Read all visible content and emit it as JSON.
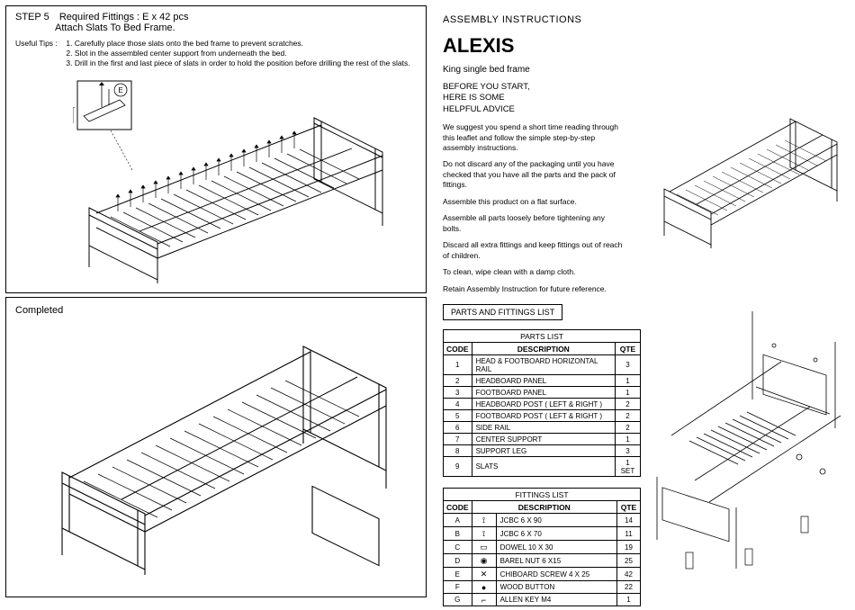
{
  "colors": {
    "line": "#000000",
    "bg": "#ffffff"
  },
  "left": {
    "step5": {
      "title": "STEP 5",
      "fittings": "Required Fittings  :  E x 42 pcs",
      "subtitle": "Attach Slats To Bed Frame.",
      "tips_label": "Useful Tips :",
      "tips": [
        "1.  Carefully place those slats onto the bed frame to prevent scratches.",
        "2.  Slot in the assembled center support from underneath the bed.",
        "3.  Drill in the first and last piece of slats in order to hold the position before drilling the rest of the slats."
      ],
      "callout_letter": "E"
    },
    "completed": {
      "label": "Completed"
    }
  },
  "right": {
    "assembly_title": "ASSEMBLY INSTRUCTIONS",
    "product": "ALEXIS",
    "subtitle": "King single bed frame",
    "advice_head_l1": "BEFORE YOU START,",
    "advice_head_l2": "HERE IS SOME",
    "advice_head_l3": "HELPFUL ADVICE",
    "advice": [
      "We suggest you spend a short time reading through this leaflet and follow the simple step-by-step assembly instructions.",
      "Do not discard any of the packaging until you have checked that you have all the parts and the pack of fittings.",
      "Assemble this product on a flat surface.",
      "Assemble all parts loosely before tightening any bolts.",
      "Discard all extra fittings and keep fittings out of reach of children.",
      "To clean, wipe clean with a damp cloth.",
      "Retain Assembly Instruction for future reference."
    ],
    "pf_title": "PARTS AND FITTINGS LIST",
    "parts_table": {
      "name": "PARTS LIST",
      "headers": [
        "CODE",
        "DESCRIPTION",
        "QTE"
      ],
      "rows": [
        [
          "1",
          "HEAD & FOOTBOARD HORIZONTAL RAIL",
          "3"
        ],
        [
          "2",
          "HEADBOARD PANEL",
          "1"
        ],
        [
          "3",
          "FOOTBOARD PANEL",
          "1"
        ],
        [
          "4",
          "HEADBOARD POST ( LEFT & RIGHT )",
          "2"
        ],
        [
          "5",
          "FOOTBOARD POST ( LEFT & RIGHT )",
          "2"
        ],
        [
          "6",
          "SIDE RAIL",
          "2"
        ],
        [
          "7",
          "CENTER SUPPORT",
          "1"
        ],
        [
          "8",
          "SUPPORT LEG",
          "3"
        ],
        [
          "9",
          "SLATS",
          "1 SET"
        ]
      ]
    },
    "fittings_table": {
      "name": "FITTINGS LIST",
      "headers": [
        "CODE",
        "",
        "DESCRIPTION",
        "QTE"
      ],
      "rows": [
        [
          "A",
          "⟟",
          "JCBC 6 X 90",
          "14"
        ],
        [
          "B",
          "⟟",
          "JCBC 6 X 70",
          "11"
        ],
        [
          "C",
          "▭",
          "DOWEL 10 X 30",
          "19"
        ],
        [
          "D",
          "◉",
          "BAREL NUT 6 X15",
          "25"
        ],
        [
          "E",
          "✕",
          "CHIBOARD SCREW 4 X 25",
          "42"
        ],
        [
          "F",
          "●",
          "WOOD BUTTON",
          "22"
        ],
        [
          "G",
          "⌐",
          "ALLEN KEY M4",
          "1"
        ]
      ]
    }
  }
}
